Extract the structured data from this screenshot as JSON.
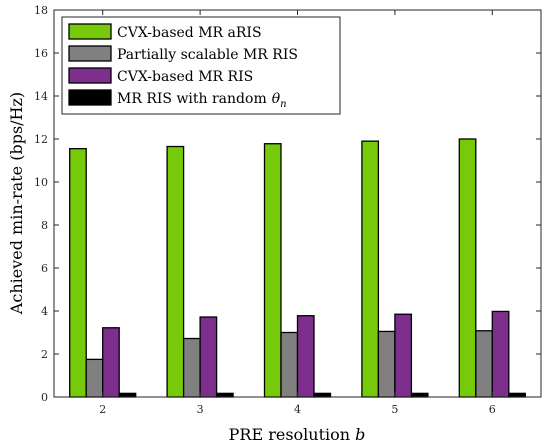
{
  "chart_data": {
    "type": "bar",
    "xlabel": "PRE resolution",
    "xlabel_var": "b",
    "ylabel": "Achieved min-rate (bps/Hz)",
    "categories": [
      "2",
      "3",
      "4",
      "5",
      "6"
    ],
    "ylim": [
      0,
      18
    ],
    "yticks": [
      0,
      2,
      4,
      6,
      8,
      10,
      12,
      14,
      16,
      18
    ],
    "legend_position": "top-left",
    "grid": false,
    "series": [
      {
        "name": "CVX-based MR aRIS",
        "color": "#77ca0a",
        "values": [
          11.55,
          11.65,
          11.78,
          11.9,
          12.0
        ]
      },
      {
        "name": "Partially scalable MR RIS",
        "color": "#808080",
        "values": [
          1.75,
          2.72,
          3.0,
          3.05,
          3.08
        ]
      },
      {
        "name": "CVX-based MR RIS",
        "color": "#7e2f8e",
        "values": [
          3.22,
          3.72,
          3.78,
          3.85,
          3.98
        ]
      },
      {
        "name": "MR RIS with random",
        "name_var": "θ",
        "name_sub": "n",
        "color": "#000000",
        "values": [
          0.17,
          0.17,
          0.17,
          0.17,
          0.17
        ]
      }
    ]
  }
}
